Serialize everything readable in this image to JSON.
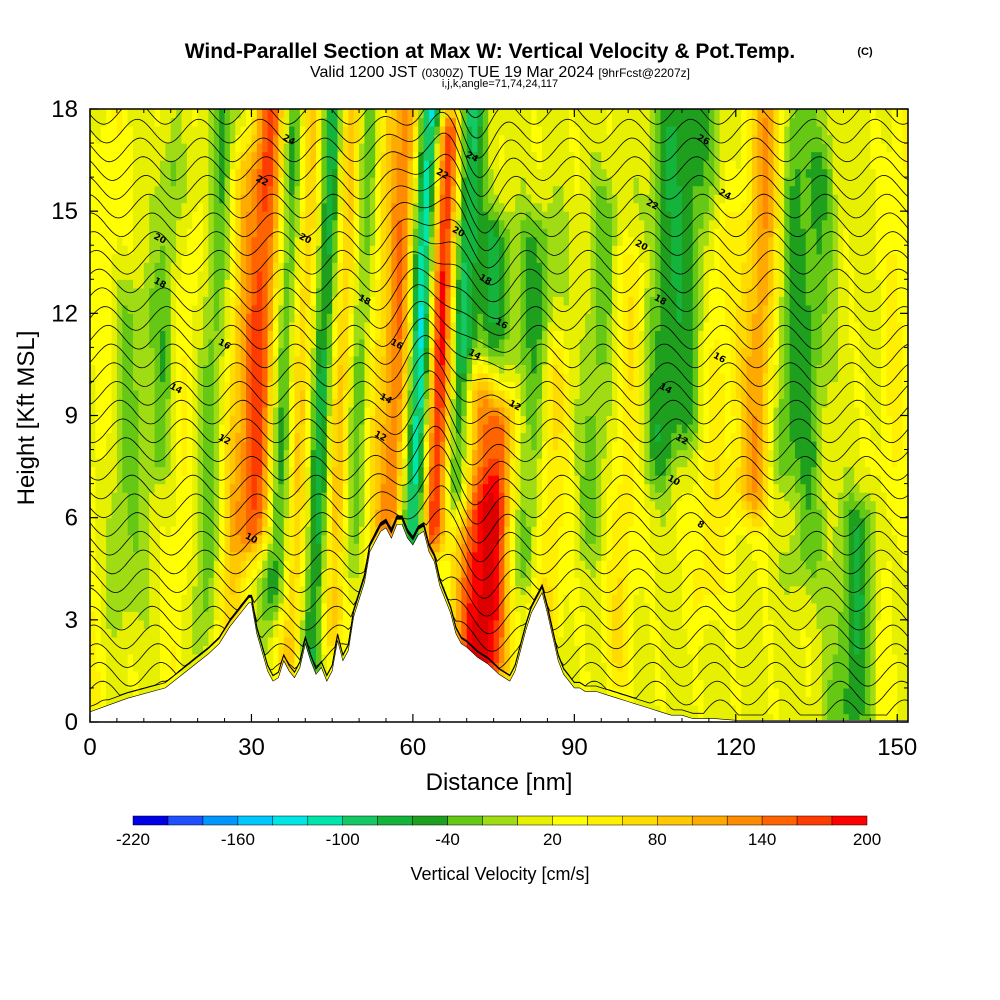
{
  "title": {
    "main": "Wind-Parallel Section at Max W: Vertical Velocity & Pot.Temp.",
    "copyright": "(C)",
    "valid_a": "Valid 1200 JST",
    "valid_z": "(0300Z)",
    "valid_b": "TUE 19 Mar 2024",
    "valid_fcst": "[9hrFcst@2207z]",
    "coords": "i,j,k,angle=71,74,24,117"
  },
  "chart_data": {
    "type": "heatmap",
    "xlabel": "Distance [nm]",
    "ylabel": "Height [Kft MSL]",
    "xlim": [
      0,
      152
    ],
    "ylim": [
      0,
      18
    ],
    "x_ticks": [
      0,
      30,
      60,
      90,
      120,
      150
    ],
    "y_ticks": [
      0,
      3,
      6,
      9,
      12,
      15,
      18
    ],
    "grid": false,
    "colorbar": {
      "label": "Vertical Velocity [cm/s]",
      "placement": "bottom",
      "min": -220,
      "max": 200,
      "step": 20,
      "tick_labels": [
        "-220",
        "-160",
        "-100",
        "-40",
        "20",
        "80",
        "140",
        "200"
      ],
      "colors": [
        "#0000e6",
        "#1e50ff",
        "#0096ff",
        "#00c8ff",
        "#00e6e6",
        "#00e6aa",
        "#14c864",
        "#14b43c",
        "#1ea01e",
        "#64c814",
        "#a0dc14",
        "#e6f000",
        "#ffff00",
        "#fff000",
        "#ffdc00",
        "#ffc800",
        "#ffaa00",
        "#ff8c00",
        "#ff6400",
        "#ff3c00",
        "#ff0000",
        "#dc0000",
        "#b40032",
        "#960064",
        "#780096",
        "#5a00a0"
      ]
    },
    "vertical_velocity_bands": [
      {
        "x": 2,
        "width": 2,
        "amp": 25,
        "z": [
          0,
          18
        ]
      },
      {
        "x": 7,
        "width": 3,
        "amp": -35,
        "z": [
          4,
          12
        ]
      },
      {
        "x": 13,
        "width": 1.5,
        "amp": -40,
        "z": [
          8,
          16
        ]
      },
      {
        "x": 18,
        "width": 2,
        "amp": 25,
        "z": [
          2,
          14
        ]
      },
      {
        "x": 23,
        "width": 2,
        "amp": -55,
        "z": [
          3,
          18
        ]
      },
      {
        "x": 27,
        "width": 2.2,
        "amp": 70,
        "z": [
          2,
          16
        ]
      },
      {
        "x": 31.5,
        "width": 2.2,
        "amp": 150,
        "z": [
          6,
          18
        ]
      },
      {
        "x": 35.5,
        "width": 1.8,
        "amp": -80,
        "z": [
          4,
          18
        ]
      },
      {
        "x": 39,
        "width": 1.6,
        "amp": 80,
        "z": [
          2,
          18
        ]
      },
      {
        "x": 43,
        "width": 1.6,
        "amp": -90,
        "z": [
          2,
          18
        ]
      },
      {
        "x": 46.5,
        "width": 1.6,
        "amp": 90,
        "z": [
          3,
          18
        ]
      },
      {
        "x": 49.5,
        "width": 1.6,
        "amp": -60,
        "z": [
          5,
          18
        ]
      },
      {
        "x": 53,
        "width": 1.8,
        "amp": 40,
        "z": [
          5,
          18
        ]
      },
      {
        "x": 57,
        "width": 2.0,
        "amp": 130,
        "z": [
          6,
          18
        ]
      },
      {
        "x": 61,
        "width": 1.8,
        "amp": -170,
        "z": [
          6,
          18
        ]
      },
      {
        "x": 64.5,
        "width": 1.8,
        "amp": 200,
        "z": [
          6,
          17
        ]
      },
      {
        "x": 68.5,
        "width": 1.8,
        "amp": -110,
        "z": [
          7,
          18
        ]
      },
      {
        "x": 72.5,
        "width": 2.5,
        "amp": 150,
        "z": [
          2,
          9.5
        ]
      },
      {
        "x": 76.5,
        "width": 2.2,
        "amp": 140,
        "z": [
          2,
          8.5
        ]
      },
      {
        "x": 74,
        "width": 2.2,
        "amp": -70,
        "z": [
          8,
          14
        ]
      },
      {
        "x": 82,
        "width": 2.5,
        "amp": -55,
        "z": [
          5,
          14
        ]
      },
      {
        "x": 86,
        "width": 2,
        "amp": 60,
        "z": [
          2,
          10
        ]
      },
      {
        "x": 94,
        "width": 2,
        "amp": -40,
        "z": [
          6,
          15
        ]
      },
      {
        "x": 100,
        "width": 2,
        "amp": 45,
        "z": [
          2,
          13
        ]
      },
      {
        "x": 106,
        "width": 2.5,
        "amp": -60,
        "z": [
          8,
          18
        ]
      },
      {
        "x": 111,
        "width": 2.5,
        "amp": -50,
        "z": [
          9,
          18
        ]
      },
      {
        "x": 116,
        "width": 2.5,
        "amp": 40,
        "z": [
          4,
          14
        ]
      },
      {
        "x": 124,
        "width": 2.5,
        "amp": 110,
        "z": [
          7,
          18
        ]
      },
      {
        "x": 129,
        "width": 2.5,
        "amp": -65,
        "z": [
          8,
          18
        ]
      },
      {
        "x": 134,
        "width": 2,
        "amp": -45,
        "z": [
          5,
          16
        ]
      },
      {
        "x": 144,
        "width": 3,
        "amp": -70,
        "z": [
          0.5,
          5.5
        ]
      },
      {
        "x": 149,
        "width": 2,
        "amp": 30,
        "z": [
          0,
          18
        ]
      }
    ],
    "terrain_kft": {
      "x": [
        0,
        7,
        14,
        18,
        22,
        24,
        26,
        28,
        29.5,
        30,
        31,
        33,
        34,
        35,
        36,
        37,
        38,
        39,
        40,
        41,
        42,
        43,
        44,
        45,
        46,
        47,
        48,
        49,
        50,
        51,
        52,
        53,
        54,
        55,
        56,
        57,
        58,
        59,
        60,
        61,
        62,
        63,
        64,
        65,
        66,
        67,
        68,
        69,
        70,
        72,
        74,
        76,
        78,
        79,
        80,
        81,
        82,
        83,
        84,
        85,
        86,
        87,
        88,
        89,
        90,
        91,
        92,
        94,
        96,
        98,
        100,
        102,
        104,
        106,
        108,
        110,
        112,
        116,
        120,
        126,
        130,
        135,
        140,
        146,
        150,
        152
      ],
      "h": [
        0.3,
        0.7,
        1.0,
        1.5,
        2.0,
        2.3,
        2.8,
        3.2,
        3.5,
        3.5,
        2.6,
        1.5,
        1.2,
        1.3,
        1.8,
        1.5,
        1.3,
        1.6,
        2.3,
        1.8,
        1.4,
        1.6,
        1.2,
        1.5,
        2.4,
        1.8,
        2.1,
        3.1,
        3.6,
        4.1,
        5.0,
        5.3,
        5.6,
        5.7,
        5.4,
        5.8,
        5.8,
        5.4,
        5.2,
        5.5,
        5.6,
        5.0,
        4.7,
        4.0,
        3.6,
        3.2,
        2.6,
        2.3,
        2.2,
        1.9,
        1.7,
        1.4,
        1.2,
        1.5,
        2.1,
        2.7,
        3.2,
        3.5,
        3.8,
        3.2,
        2.5,
        1.8,
        1.4,
        1.2,
        1.0,
        1.0,
        0.9,
        0.9,
        0.8,
        0.7,
        0.6,
        0.5,
        0.4,
        0.3,
        0.2,
        0.2,
        0.1,
        0.1,
        0.05,
        0.05,
        0.05,
        0.05,
        0.05,
        0.05,
        0.05,
        0.05
      ]
    },
    "theta_contours": {
      "unit": "K",
      "labels": [
        {
          "text": "24",
          "x": 37,
          "z": 17.1
        },
        {
          "text": "22",
          "x": 32,
          "z": 15.9
        },
        {
          "text": "20",
          "x": 13,
          "z": 14.2
        },
        {
          "text": "20",
          "x": 40,
          "z": 14.2
        },
        {
          "text": "18",
          "x": 13,
          "z": 12.9
        },
        {
          "text": "18",
          "x": 51,
          "z": 12.4
        },
        {
          "text": "16",
          "x": 25,
          "z": 11.1
        },
        {
          "text": "16",
          "x": 57,
          "z": 11.1
        },
        {
          "text": "14",
          "x": 16,
          "z": 9.8
        },
        {
          "text": "14",
          "x": 55,
          "z": 9.5
        },
        {
          "text": "12",
          "x": 25,
          "z": 8.3
        },
        {
          "text": "12",
          "x": 54,
          "z": 8.4
        },
        {
          "text": "10",
          "x": 30,
          "z": 5.4
        },
        {
          "text": "22",
          "x": 65.5,
          "z": 16.1
        },
        {
          "text": "24",
          "x": 71,
          "z": 16.6
        },
        {
          "text": "20",
          "x": 68.5,
          "z": 14.4
        },
        {
          "text": "18",
          "x": 73.5,
          "z": 13.0
        },
        {
          "text": "16",
          "x": 76.5,
          "z": 11.7
        },
        {
          "text": "14",
          "x": 71.5,
          "z": 10.8
        },
        {
          "text": "12",
          "x": 79,
          "z": 9.3
        },
        {
          "text": "26",
          "x": 114,
          "z": 17.1
        },
        {
          "text": "22",
          "x": 104.5,
          "z": 15.2
        },
        {
          "text": "24",
          "x": 118,
          "z": 15.5
        },
        {
          "text": "20",
          "x": 102.5,
          "z": 14.0
        },
        {
          "text": "18",
          "x": 106,
          "z": 12.4
        },
        {
          "text": "16",
          "x": 117,
          "z": 10.7
        },
        {
          "text": "14",
          "x": 107,
          "z": 9.8
        },
        {
          "text": "12",
          "x": 110,
          "z": 8.3
        },
        {
          "text": "10",
          "x": 108.5,
          "z": 7.1
        },
        {
          "text": "8",
          "x": 113.5,
          "z": 5.8
        }
      ]
    }
  }
}
